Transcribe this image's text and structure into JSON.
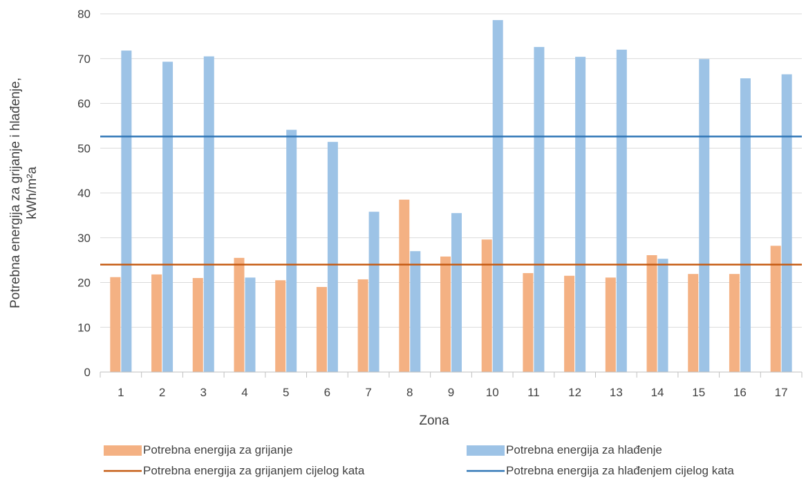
{
  "chart_data": {
    "type": "bar",
    "xlabel": "Zona",
    "ylabel_line1": "Potrebna energija za grijanje i hlađenje,",
    "ylabel_line2": "kWh/m²a",
    "ylim": [
      0,
      80
    ],
    "yticks": [
      "0",
      "10",
      "20",
      "30",
      "40",
      "50",
      "60",
      "70",
      "80"
    ],
    "grid": true,
    "legend_position": "bottom",
    "categories": [
      "1",
      "2",
      "3",
      "4",
      "5",
      "6",
      "7",
      "8",
      "9",
      "10",
      "11",
      "12",
      "13",
      "14",
      "15",
      "16",
      "17"
    ],
    "series": [
      {
        "name": "Potrebna energija za grijanje",
        "kind": "bar",
        "color": "#f4b183",
        "values": [
          21.2,
          21.8,
          21.0,
          25.5,
          20.5,
          19.0,
          20.7,
          38.5,
          25.8,
          29.6,
          22.1,
          21.5,
          21.1,
          26.1,
          21.9,
          21.9,
          28.2
        ]
      },
      {
        "name": "Potrebna energija za hlađenje",
        "kind": "bar",
        "color": "#9dc3e6",
        "values": [
          71.8,
          69.3,
          70.5,
          21.1,
          54.1,
          51.4,
          35.8,
          27.0,
          35.5,
          78.6,
          72.6,
          70.4,
          72.0,
          25.3,
          69.9,
          65.6,
          66.5
        ]
      },
      {
        "name": "Potrebna energija za grijanjem cijelog kata",
        "kind": "line",
        "color": "#c55a11",
        "value": 24.0
      },
      {
        "name": "Potrebna energija za hlađenjem cijelog kata",
        "kind": "line",
        "color": "#2e75b6",
        "value": 52.6
      }
    ]
  }
}
